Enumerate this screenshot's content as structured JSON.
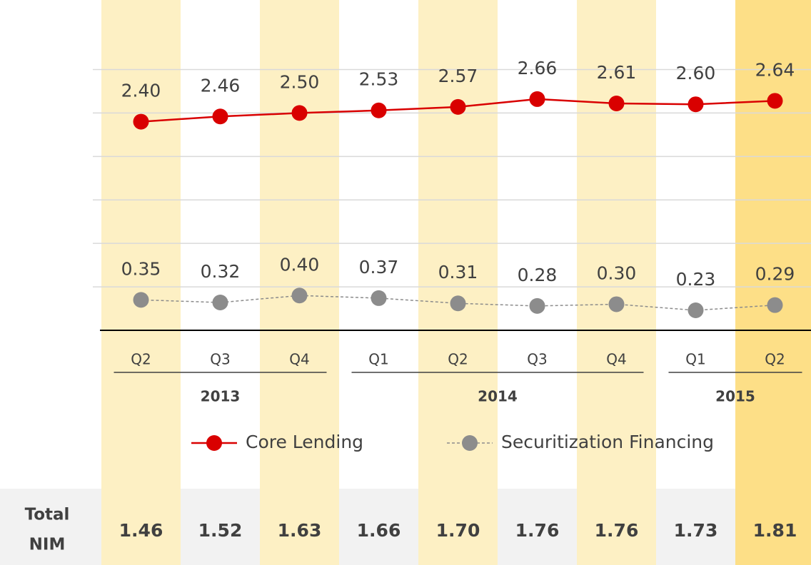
{
  "chart_data": {
    "type": "line",
    "categories": [
      "Q2",
      "Q3",
      "Q4",
      "Q1",
      "Q2",
      "Q3",
      "Q4",
      "Q1",
      "Q2"
    ],
    "groups": [
      {
        "name": "2013",
        "count": 3
      },
      {
        "name": "2014",
        "count": 4
      },
      {
        "name": "2015",
        "count": 2
      }
    ],
    "series": [
      {
        "name": "Core Lending",
        "color": "#d90000",
        "dashed": false,
        "values": [
          2.4,
          2.46,
          2.5,
          2.53,
          2.57,
          2.66,
          2.61,
          2.6,
          2.64
        ],
        "value_labels": [
          "2.40",
          "2.46",
          "2.50",
          "2.53",
          "2.57",
          "2.66",
          "2.61",
          "2.60",
          "2.64"
        ]
      },
      {
        "name": "Securitization Financing",
        "color": "#8c8c8c",
        "dashed": true,
        "values": [
          0.35,
          0.32,
          0.4,
          0.37,
          0.31,
          0.28,
          0.3,
          0.23,
          0.29
        ],
        "value_labels": [
          "0.35",
          "0.32",
          "0.40",
          "0.37",
          "0.31",
          "0.28",
          "0.30",
          "0.23",
          "0.29"
        ]
      }
    ],
    "ylim": [
      0,
      3.8
    ],
    "yticks": [
      0.5,
      1,
      1.5,
      2,
      2.5,
      3
    ],
    "grid": true,
    "band_colors": [
      "#fdf0c4",
      null,
      "#fdf0c4",
      null,
      "#fdf0c4",
      null,
      "#fdf0c4",
      null,
      "#fddf87"
    ],
    "total_nim": {
      "label_lines": [
        "Total",
        "NIM"
      ],
      "values": [
        1.46,
        1.52,
        1.63,
        1.66,
        1.7,
        1.76,
        1.76,
        1.73,
        1.81
      ],
      "value_labels": [
        "1.46",
        "1.52",
        "1.63",
        "1.66",
        "1.70",
        "1.76",
        "1.76",
        "1.73",
        "1.81"
      ],
      "colors": [
        "#595959",
        "#595959",
        "#000000",
        "#000000",
        "#000000",
        "#000000",
        "#000000",
        "#000000",
        "#000000"
      ]
    }
  }
}
